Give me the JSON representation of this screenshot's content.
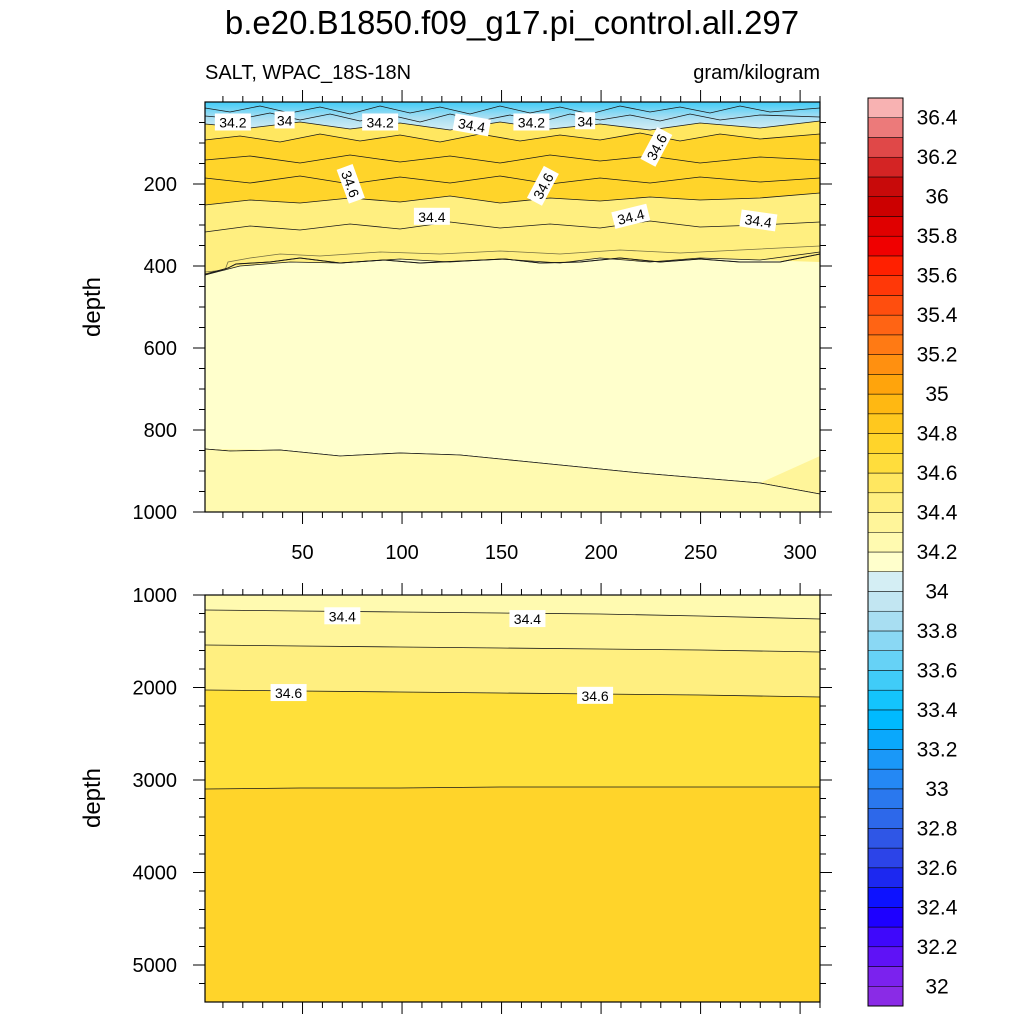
{
  "chart_data": {
    "type": "contour",
    "title": "b.e20.B1850.f09_g17.pi_control.all.297",
    "subtitle_left": "SALT, WPAC_18S-18N",
    "subtitle_right": "gram/kilogram",
    "ylabel": "depth",
    "colorbar": {
      "levels": [
        32,
        32.1,
        32.2,
        32.3,
        32.4,
        32.5,
        32.6,
        32.7,
        32.8,
        32.9,
        33,
        33.1,
        33.2,
        33.3,
        33.4,
        33.5,
        33.6,
        33.7,
        33.8,
        33.9,
        34,
        34.1,
        34.2,
        34.3,
        34.4,
        34.5,
        34.6,
        34.7,
        34.8,
        34.9,
        35,
        35.1,
        35.2,
        35.3,
        35.4,
        35.5,
        35.6,
        35.7,
        35.8,
        35.9,
        36,
        36.1,
        36.2,
        36.3,
        36.4,
        36.5
      ],
      "tick_labels": [
        "32",
        "32.2",
        "32.4",
        "32.6",
        "32.8",
        "33",
        "33.2",
        "33.4",
        "33.6",
        "33.8",
        "34",
        "34.2",
        "34.4",
        "34.6",
        "34.8",
        "35",
        "35.2",
        "35.4",
        "35.6",
        "35.8",
        "36",
        "36.2",
        "36.4"
      ],
      "colors": [
        "#8a2be6",
        "#7b22ee",
        "#5f12f6",
        "#3f08fb",
        "#1e00ff",
        "#0d12ff",
        "#1c28f0",
        "#2c44e8",
        "#2f56e6",
        "#2d68ea",
        "#2a78ee",
        "#2488f4",
        "#1a98f8",
        "#0aa8fc",
        "#00baff",
        "#14c4fc",
        "#40ccf8",
        "#66d2f6",
        "#8ad8f4",
        "#a8def2",
        "#c2e6f2",
        "#d4eef4",
        "#ffffcc",
        "#fffab0",
        "#fff59a",
        "#ffef80",
        "#ffe760",
        "#ffdd3c",
        "#ffd42a",
        "#ffc81e",
        "#ffb812",
        "#ffa40c",
        "#ff9010",
        "#ff7a14",
        "#ff6414",
        "#ff4e0e",
        "#ff3808",
        "#ff2000",
        "#f00000",
        "#e00000",
        "#cc0000",
        "#c80a0a",
        "#d42424",
        "#e04848",
        "#ec7a7a",
        "#f8b2b2"
      ]
    },
    "panels": [
      {
        "name": "upper",
        "ylim": [
          1000,
          0
        ],
        "yticks": [
          200,
          400,
          600,
          800,
          1000
        ],
        "xlim": [
          1,
          310
        ],
        "xticks": [
          50,
          100,
          150,
          200,
          250,
          300
        ],
        "contour_labels": [
          {
            "text": "34.2",
            "x": 15,
            "depth": 50
          },
          {
            "text": "34",
            "x": 41,
            "depth": 45
          },
          {
            "text": "34.2",
            "x": 89,
            "depth": 50
          },
          {
            "text": "34.4",
            "x": 135,
            "depth": 57
          },
          {
            "text": "34.2",
            "x": 165,
            "depth": 50
          },
          {
            "text": "34",
            "x": 192,
            "depth": 47
          },
          {
            "text": "34.6",
            "x": 228,
            "depth": 110
          },
          {
            "text": "34.6",
            "x": 74,
            "depth": 200
          },
          {
            "text": "34.6",
            "x": 171,
            "depth": 205
          },
          {
            "text": "34.4",
            "x": 115,
            "depth": 280
          },
          {
            "text": "34.4",
            "x": 215,
            "depth": 280
          },
          {
            "text": "34.4",
            "x": 279,
            "depth": 290
          }
        ]
      },
      {
        "name": "lower",
        "ylim": [
          5400,
          1000
        ],
        "yticks": [
          1000,
          2000,
          3000,
          4000,
          5000
        ],
        "contour_labels": [
          {
            "text": "34.4",
            "x": 70,
            "depth": 1230
          },
          {
            "text": "34.4",
            "x": 163,
            "depth": 1260
          },
          {
            "text": "34.6",
            "x": 43,
            "depth": 2060
          },
          {
            "text": "34.6",
            "x": 197,
            "depth": 2090
          }
        ]
      }
    ]
  }
}
